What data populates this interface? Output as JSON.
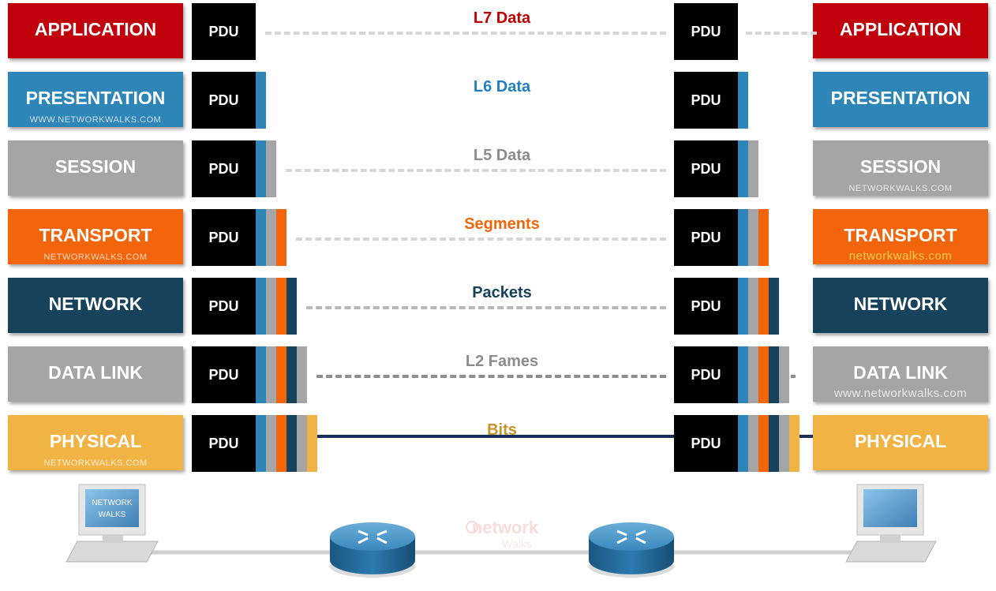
{
  "layers": [
    {
      "id": "application",
      "label": "APPLICATION",
      "color": "#c0000b",
      "caption": "L7 Data",
      "caption_color": "#c00000",
      "left_wm": "",
      "right_wm": "",
      "link": "dash-light"
    },
    {
      "id": "presentation",
      "label": "PRESENTATION",
      "color": "#2e86b8",
      "caption": "L6 Data",
      "caption_color": "#1f7fc6",
      "left_wm": "WWW.NETWORKWALKS.COM",
      "right_wm": "",
      "link": "none"
    },
    {
      "id": "session",
      "label": "SESSION",
      "color": "#a5a5a5",
      "caption": "L5 Data",
      "caption_color": "#8c8c8c",
      "left_wm": "",
      "right_wm": "NETWORKWALKS.COM",
      "link": "dash-light"
    },
    {
      "id": "transport",
      "label": "TRANSPORT",
      "color": "#f2650a",
      "caption": "Segments",
      "caption_color": "#f2650a",
      "left_wm": "NETWORKWALKS.COM",
      "right_wm": "networkwalks.com",
      "link": "dash-light"
    },
    {
      "id": "network",
      "label": "NETWORK",
      "color": "#17425c",
      "caption": "Packets",
      "caption_color": "#17425c",
      "left_wm": "",
      "right_wm": "",
      "link": "dash-mid"
    },
    {
      "id": "datalink",
      "label": "DATA LINK",
      "color": "#a5a5a5",
      "caption": "L2 Fames",
      "caption_color": "#8c8c8c",
      "left_wm": "",
      "right_wm": "www.networkwalks.com",
      "link": "dash-dark"
    },
    {
      "id": "physical",
      "label": "PHYSICAL",
      "color": "#f0b344",
      "caption": "Bits",
      "caption_color": "#c9932a",
      "left_wm": "NETWORKWALKS.COM",
      "right_wm": "",
      "link": "solid"
    }
  ],
  "pdu_label": "PDU",
  "header_colors": [
    "#2e86b8",
    "#a5a5a5",
    "#f2650a",
    "#17425c",
    "#a5a5a5",
    "#f0b344"
  ],
  "pc_left_screen_text": [
    "NETWORK",
    "WALKS"
  ],
  "logo_text": [
    "network",
    "Walks"
  ]
}
